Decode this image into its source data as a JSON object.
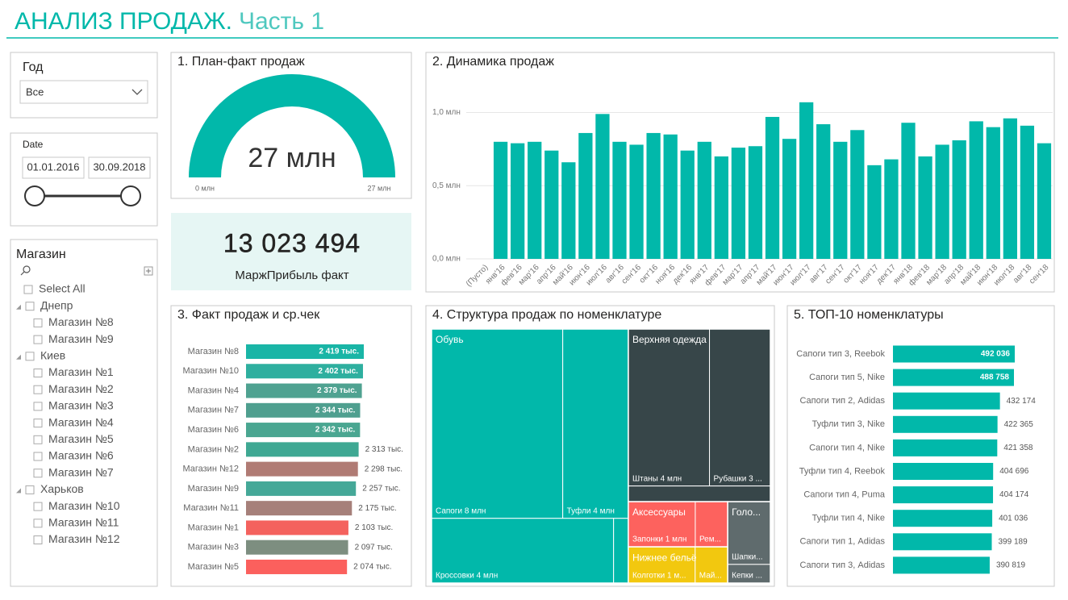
{
  "header": {
    "title": "АНАЛИЗ ПРОДАЖ.",
    "subtitle": "Часть 1"
  },
  "year_slicer": {
    "label": "Год",
    "value": "Все"
  },
  "date_slicer": {
    "label": "Date",
    "start": "01.01.2016",
    "end": "30.09.2018"
  },
  "store_slicer": {
    "title": "Магазин",
    "select_all": "Select All",
    "groups": [
      {
        "name": "Днепр",
        "stores": [
          "Магазин №8",
          "Магазин №9"
        ]
      },
      {
        "name": "Киев",
        "stores": [
          "Магазин №1",
          "Магазин №2",
          "Магазин №3",
          "Магазин №4",
          "Магазин №5",
          "Магазин №6",
          "Магазин №7"
        ]
      },
      {
        "name": "Харьков",
        "stores": [
          "Магазин №10",
          "Магазин №11",
          "Магазин №12"
        ]
      }
    ]
  },
  "kpi": {
    "value": "13 023 494",
    "label": "МаржПрибыль факт"
  },
  "chart_data": [
    {
      "type": "gauge",
      "title": "1. План-факт продаж",
      "values": [
        27
      ],
      "value_labels": [
        "27 млн"
      ],
      "ylim": [
        0,
        27
      ],
      "yticks": [
        {
          "value": 0,
          "label": "0 млн"
        },
        {
          "value": 27,
          "label": "27 млн"
        }
      ],
      "color": "#01b8aa"
    },
    {
      "type": "bar",
      "title": "2. Динамика продаж",
      "categories": [
        "(Пусто)",
        "янв'16",
        "фев'16",
        "мар'16",
        "апр'16",
        "май'16",
        "июн'16",
        "июл'16",
        "авг'16",
        "сен'16",
        "окт'16",
        "ноя'16",
        "дек'16",
        "янв'17",
        "фев'17",
        "мар'17",
        "апр'17",
        "май'17",
        "июн'17",
        "июл'17",
        "авг'17",
        "сен'17",
        "окт'17",
        "ноя'17",
        "дек'17",
        "янв'18",
        "фев'18",
        "мар'18",
        "апр'18",
        "май'18",
        "июн'18",
        "июл'18",
        "авг'18",
        "сен'18"
      ],
      "values": [
        null,
        0.8,
        0.79,
        0.8,
        0.74,
        0.66,
        0.86,
        0.99,
        0.8,
        0.78,
        0.86,
        0.85,
        0.74,
        0.8,
        0.7,
        0.76,
        0.77,
        0.97,
        0.82,
        1.07,
        0.92,
        0.8,
        0.88,
        0.64,
        0.68,
        0.93,
        0.7,
        0.78,
        0.81,
        0.94,
        0.9,
        0.96,
        0.91,
        0.79
      ],
      "ylim": [
        0,
        1.08
      ],
      "yticks": [
        {
          "value": 0,
          "label": "0,0 млн"
        },
        {
          "value": 0.5,
          "label": "0,5 млн"
        },
        {
          "value": 1,
          "label": "1,0 млн"
        }
      ],
      "grid": true,
      "color": "#01b8aa"
    },
    {
      "type": "hbar",
      "title": "3. Факт продаж и ср.чек",
      "categories": [
        "Магазин №8",
        "Магазин №10",
        "Магазин №4",
        "Магазин №7",
        "Магазин №6",
        "Магазин №2",
        "Магазин №12",
        "Магазин №9",
        "Магазин №11",
        "Магазин №1",
        "Магазин №3",
        "Магазин №5"
      ],
      "values": [
        2419,
        2402,
        2379,
        2344,
        2342,
        2313,
        2298,
        2257,
        2175,
        2103,
        2097,
        2074
      ],
      "value_labels": [
        "2 419 тыс.",
        "2 402 тыс.",
        "2 379 тыс.",
        "2 344 тыс.",
        "2 342 тыс.",
        "2 313 тыс.",
        "2 298 тыс.",
        "2 257 тыс.",
        "2 175 тыс.",
        "2 103 тыс.",
        "2 097 тыс.",
        "2 074 тыс."
      ],
      "colors": [
        "#19b5a6",
        "#2eaf9f",
        "#4fa291",
        "#4f9f8f",
        "#4aa691",
        "#3fa893",
        "#b07b74",
        "#45a898",
        "#a6807a",
        "#f4625e",
        "#7d8e80",
        "#fb605d"
      ]
    },
    {
      "type": "treemap",
      "title": "4. Структура продаж по номенклатуре",
      "groups": [
        {
          "name": "Обувь",
          "color": "#01b8aa",
          "items": [
            {
              "label": "Сапоги 8 млн",
              "value": 7.8
            },
            {
              "label": "Туфли 4 млн",
              "value": 3.9
            },
            {
              "label": "Кроссовки 4 млн",
              "value": 3.7
            },
            {
              "label": null,
              "value": 0.3
            }
          ]
        },
        {
          "name": "Верхняя одежда",
          "color": "#374649",
          "items": [
            {
              "label": "Штаны 4 млн",
              "value": 4.0
            },
            {
              "label": "Рубашки 3 ...",
              "value": 3.0
            },
            {
              "label": null,
              "value": 0.7
            }
          ]
        },
        {
          "name": "Аксессуары",
          "color": "#fd625e",
          "items": [
            {
              "label": "Запонки 1 млн",
              "value": 0.95
            },
            {
              "label": "Рем...",
              "value": 0.46
            }
          ]
        },
        {
          "name": "Нижнее бельё",
          "color": "#f2c80f",
          "items": [
            {
              "label": "Колготки 1 м...",
              "value": 0.76
            },
            {
              "label": "Май...",
              "value": 0.37
            }
          ]
        },
        {
          "name": "Голо...",
          "color": "#5f6b6d",
          "items": [
            {
              "label": "Шапки...",
              "value": 0.84
            },
            {
              "label": "Кепки ...",
              "value": 0.25
            }
          ]
        }
      ]
    },
    {
      "type": "hbar",
      "title": "5. ТОП-10 номенклатуры",
      "categories": [
        "Сапоги тип 3, Reebok",
        "Сапоги тип 5, Nike",
        "Сапоги тип 2, Adidas",
        "Туфли тип 3, Nike",
        "Сапоги тип 4, Nike",
        "Туфли тип 4, Reebok",
        "Сапоги тип 4, Puma",
        "Туфли тип 4, Nike",
        "Сапоги тип 1, Adidas",
        "Сапоги тип 3, Adidas"
      ],
      "values": [
        492036,
        488758,
        432174,
        422365,
        421358,
        404696,
        404174,
        401036,
        399189,
        390819
      ],
      "value_labels": [
        "492 036",
        "488 758",
        "432 174",
        "422 365",
        "421 358",
        "404 696",
        "404 174",
        "401 036",
        "399 189",
        "390 819"
      ],
      "color": "#01b8aa"
    }
  ]
}
